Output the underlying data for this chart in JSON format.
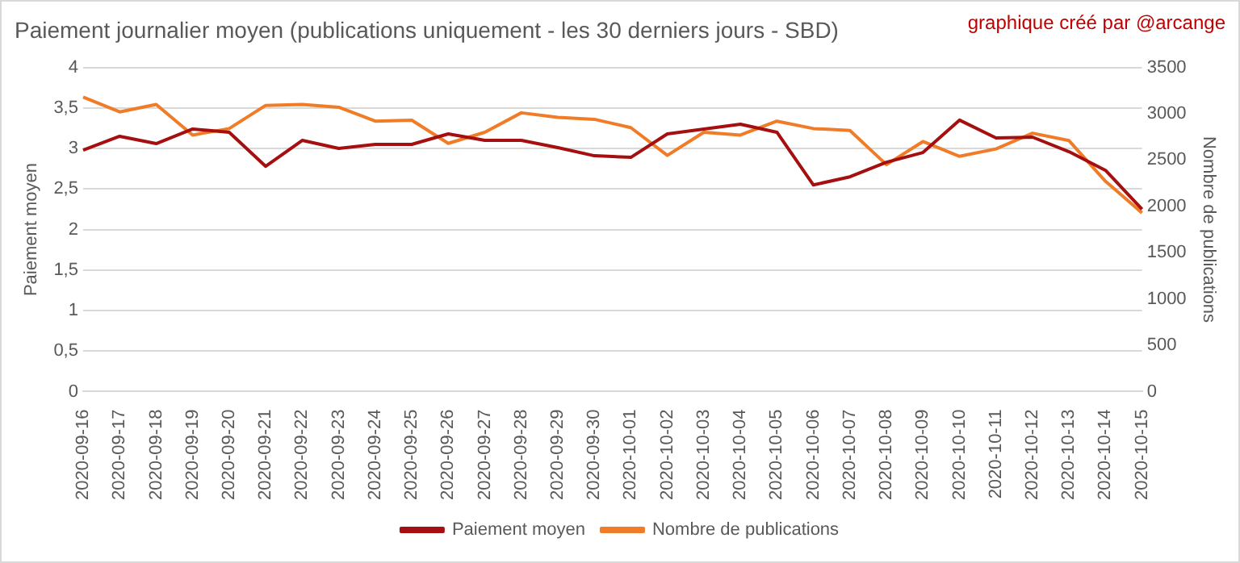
{
  "chart_data": {
    "type": "line",
    "title": "Paiement journalier moyen (publications uniquement - les 30 derniers jours - SBD)",
    "annotations": [
      "graphique créé par @arcange"
    ],
    "ylabel": "Paiement moyen",
    "y2label": "Nombre de publications",
    "categories": [
      "2020-09-16",
      "2020-09-17",
      "2020-09-18",
      "2020-09-19",
      "2020-09-20",
      "2020-09-21",
      "2020-09-22",
      "2020-09-23",
      "2020-09-24",
      "2020-09-25",
      "2020-09-26",
      "2020-09-27",
      "2020-09-28",
      "2020-09-29",
      "2020-09-30",
      "2020-10-01",
      "2020-10-02",
      "2020-10-03",
      "2020-10-04",
      "2020-10-05",
      "2020-10-06",
      "2020-10-07",
      "2020-10-08",
      "2020-10-09",
      "2020-10-10",
      "2020-10-11",
      "2020-10-12",
      "2020-10-13",
      "2020-10-14",
      "2020-10-15"
    ],
    "series": [
      {
        "name": "Paiement moyen",
        "color": "#a50f0f",
        "values": [
          2.98,
          3.15,
          3.06,
          3.24,
          3.2,
          2.78,
          3.1,
          3.0,
          3.05,
          3.05,
          3.18,
          3.1,
          3.1,
          3.01,
          2.91,
          2.89,
          3.18,
          3.24,
          3.3,
          3.2,
          2.55,
          2.65,
          2.83,
          2.95,
          3.35,
          3.13,
          3.14,
          2.96,
          2.73,
          2.25
        ]
      },
      {
        "name": "Nombre de publications",
        "color": "#f07c28",
        "axis": "y2",
        "values": [
          3180,
          3020,
          3100,
          2770,
          2840,
          3090,
          3100,
          3070,
          2920,
          2930,
          2680,
          2800,
          3010,
          2960,
          2940,
          2850,
          2550,
          2800,
          2770,
          2920,
          2840,
          2820,
          2450,
          2700,
          2540,
          2620,
          2790,
          2710,
          2270,
          1930
        ]
      }
    ],
    "ylim": [
      0,
      4
    ],
    "yticks": [
      0,
      {
        "value": 0.5,
        "label": "0,5"
      },
      1,
      {
        "value": 1.5,
        "label": "1,5"
      },
      2,
      {
        "value": 2.5,
        "label": "2,5"
      },
      3,
      {
        "value": 3.5,
        "label": "3,5"
      },
      4
    ],
    "y2lim": [
      0,
      3500
    ],
    "y2ticks": [
      0,
      500,
      1000,
      1500,
      2000,
      2500,
      3000,
      3500
    ],
    "grid": "y",
    "legend": "bottom",
    "marker": "none",
    "line_style": "solid"
  }
}
